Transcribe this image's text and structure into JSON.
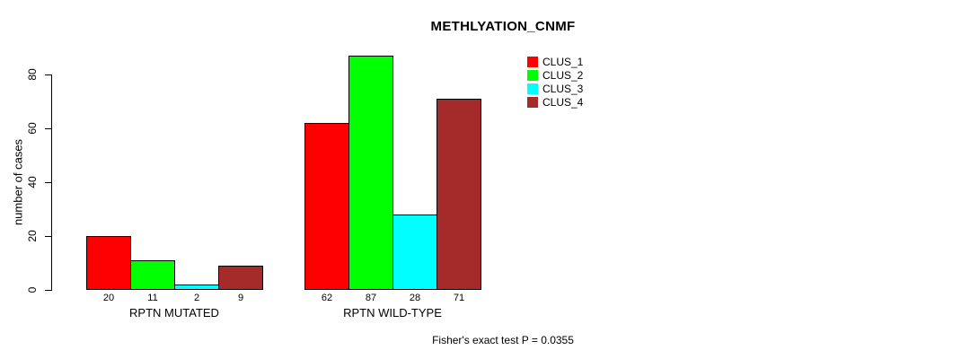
{
  "chart_data": {
    "type": "bar",
    "title": "METHLYATION_CNMF",
    "ylabel": "number of cases",
    "xlabel": "",
    "groups": [
      "RPTN MUTATED",
      "RPTN WILD-TYPE"
    ],
    "series": [
      {
        "name": "CLUS_1",
        "color": "#ff0000",
        "values": [
          20,
          62
        ]
      },
      {
        "name": "CLUS_2",
        "color": "#00ff00",
        "values": [
          11,
          87
        ]
      },
      {
        "name": "CLUS_3",
        "color": "#00ffff",
        "values": [
          2,
          28
        ]
      },
      {
        "name": "CLUS_4",
        "color": "#a52a2a",
        "values": [
          9,
          71
        ]
      }
    ],
    "bar_value_labels_shown": true,
    "yticks": [
      0,
      20,
      40,
      60,
      80
    ],
    "ylim": [
      0,
      87
    ],
    "grid": false,
    "legend_position": "top-right",
    "legend_items": [
      "CLUS_1",
      "CLUS_2",
      "CLUS_3",
      "CLUS_4"
    ],
    "annotation": "Fisher's exact test P = 0.0355"
  }
}
